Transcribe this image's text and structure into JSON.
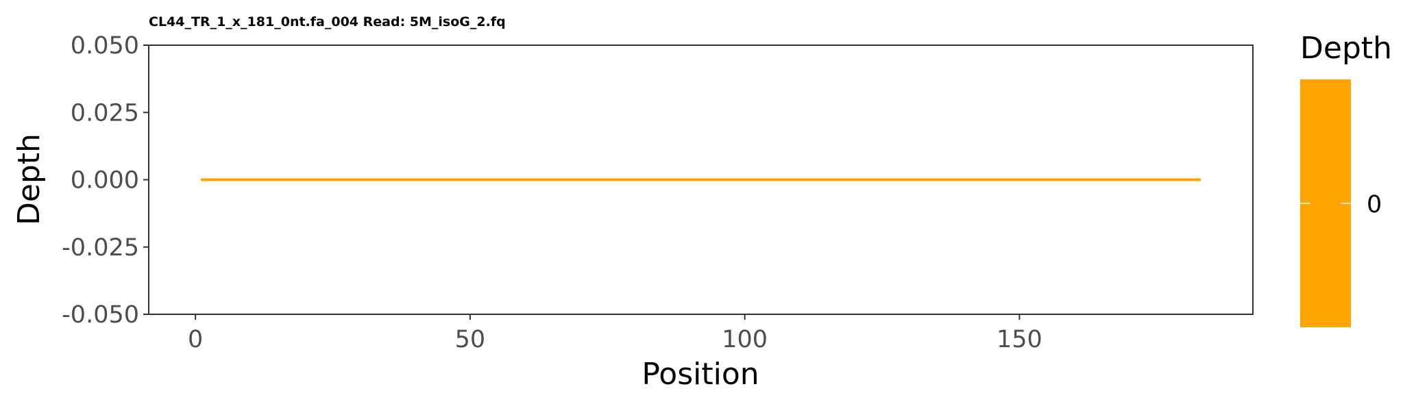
{
  "chart_data": {
    "type": "line",
    "title": "CL44_TR_1_x_181_0nt.fa_004 Read: 5M_isoG_2.fq",
    "xlabel": "Position",
    "ylabel": "Depth",
    "x_range": [
      1,
      183
    ],
    "y_value": 0,
    "xlim": [
      -8.5,
      192.5
    ],
    "ylim": [
      -0.05,
      0.05
    ],
    "x_ticks": [
      0,
      50,
      100,
      150
    ],
    "x_tick_labels": [
      "0",
      "50",
      "100",
      "150"
    ],
    "y_ticks": [
      -0.05,
      -0.025,
      0,
      0.025,
      0.05
    ],
    "y_tick_labels": [
      "-0.050",
      "-0.025",
      "0.000",
      "0.025",
      "0.050"
    ],
    "line_color": "#FFA500",
    "grid": false,
    "legend": {
      "title": "Depth",
      "labels": [
        "0"
      ],
      "color": "#FFA500",
      "placement": "right"
    }
  }
}
